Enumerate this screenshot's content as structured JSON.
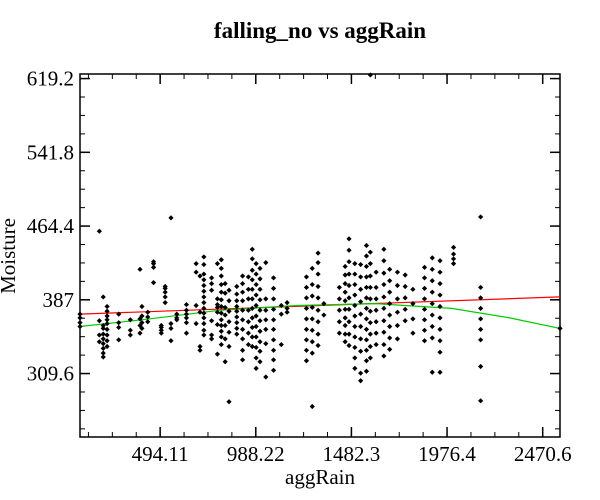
{
  "chart_data": {
    "type": "scatter",
    "title": "falling_no vs aggRain",
    "xlabel": "aggRain",
    "ylabel": "Moisture",
    "xlim": [
      80,
      2560
    ],
    "ylim": [
      243,
      624
    ],
    "x_ticks": [
      {
        "value": 494.11,
        "label": "494.11"
      },
      {
        "value": 988.22,
        "label": "988.22"
      },
      {
        "value": 1482.3,
        "label": "1482.3"
      },
      {
        "value": 1976.4,
        "label": "1976.4"
      },
      {
        "value": 2470.6,
        "label": "2470.6"
      }
    ],
    "y_ticks": [
      {
        "value": 309.6,
        "label": "309.6"
      },
      {
        "value": 387,
        "label": "387"
      },
      {
        "value": 464.4,
        "label": "464.4"
      },
      {
        "value": 541.8,
        "label": "541.8"
      },
      {
        "value": 619.2,
        "label": "619.2"
      }
    ],
    "grid": false,
    "marker_color": "#000000",
    "point_columns": [
      {
        "x": 80,
        "y": [
          372,
          368,
          363,
          359
        ]
      },
      {
        "x": 180,
        "y": [
          350,
          343,
          365,
          459
        ]
      },
      {
        "x": 200,
        "y": [
          360,
          357,
          351,
          346,
          341,
          336,
          331,
          327,
          390
        ]
      },
      {
        "x": 220,
        "y": [
          380,
          375,
          370,
          366,
          362,
          356,
          350,
          344,
          338
        ]
      },
      {
        "x": 280,
        "y": [
          372,
          363,
          358,
          345
        ]
      },
      {
        "x": 340,
        "y": [
          366,
          355,
          350
        ]
      },
      {
        "x": 390,
        "y": [
          419,
          367,
          360,
          352
        ]
      },
      {
        "x": 400,
        "y": [
          380,
          370,
          363,
          357
        ]
      },
      {
        "x": 430,
        "y": [
          374,
          369,
          364
        ]
      },
      {
        "x": 460,
        "y": [
          427,
          425,
          421,
          405
        ]
      },
      {
        "x": 500,
        "y": [
          360,
          358,
          355,
          352
        ]
      },
      {
        "x": 520,
        "y": [
          401,
          399,
          395,
          390,
          384
        ]
      },
      {
        "x": 550,
        "y": [
          473,
          362,
          357,
          344
        ]
      },
      {
        "x": 580,
        "y": [
          372,
          368,
          366
        ]
      },
      {
        "x": 630,
        "y": [
          382,
          376,
          372,
          368,
          363,
          352
        ]
      },
      {
        "x": 680,
        "y": [
          425,
          416,
          381,
          362
        ]
      },
      {
        "x": 700,
        "y": [
          412,
          374,
          338,
          334
        ]
      },
      {
        "x": 720,
        "y": [
          432,
          424,
          414,
          408,
          402,
          396,
          390,
          384,
          378,
          373,
          368,
          362,
          355,
          350
        ]
      },
      {
        "x": 760,
        "y": [
          410,
          404,
          397,
          365,
          350,
          346
        ]
      },
      {
        "x": 790,
        "y": [
          425,
          388,
          382,
          379,
          374,
          361,
          330
        ]
      },
      {
        "x": 810,
        "y": [
          429,
          420,
          412,
          403,
          395,
          387,
          380,
          373,
          366,
          360,
          354,
          348,
          340
        ]
      },
      {
        "x": 830,
        "y": [
          404,
          394,
          379,
          371,
          360,
          346,
          322
        ]
      },
      {
        "x": 850,
        "y": [
          397,
          386,
          375,
          364,
          353,
          338,
          280
        ]
      },
      {
        "x": 890,
        "y": [
          401,
          393,
          386,
          380,
          375,
          369,
          363,
          357,
          351
        ]
      },
      {
        "x": 920,
        "y": [
          412,
          404,
          395,
          386,
          376,
          366,
          356,
          346,
          334,
          324
        ]
      },
      {
        "x": 950,
        "y": [
          411,
          398,
          388,
          376,
          364,
          352,
          340
        ]
      },
      {
        "x": 970,
        "y": [
          440,
          430,
          418,
          408,
          398,
          388,
          378,
          368,
          358,
          348,
          338
        ]
      },
      {
        "x": 990,
        "y": [
          425,
          414,
          403,
          392,
          381,
          370,
          359,
          348,
          337,
          326,
          315
        ]
      },
      {
        "x": 1010,
        "y": [
          420,
          409,
          398,
          387,
          376,
          365,
          354,
          343,
          333,
          322
        ]
      },
      {
        "x": 1040,
        "y": [
          426,
          388,
          376,
          366,
          356,
          341,
          306
        ]
      },
      {
        "x": 1080,
        "y": [
          410,
          399,
          388,
          377,
          366,
          356,
          345,
          334,
          324,
          313
        ]
      },
      {
        "x": 1120,
        "y": [
          381,
          372,
          340
        ]
      },
      {
        "x": 1150,
        "y": [
          384,
          378,
          374
        ]
      },
      {
        "x": 1250,
        "y": [
          411,
          400,
          389,
          378,
          367,
          356,
          345,
          334,
          323
        ]
      },
      {
        "x": 1280,
        "y": [
          420,
          403,
          391,
          379,
          367,
          355,
          343,
          331,
          275
        ]
      },
      {
        "x": 1310,
        "y": [
          436,
          426,
          414,
          401,
          389,
          376,
          364,
          351,
          339
        ]
      },
      {
        "x": 1340,
        "y": [
          383,
          371
        ]
      },
      {
        "x": 1420,
        "y": [
          400,
          388,
          376,
          364,
          352
        ]
      },
      {
        "x": 1450,
        "y": [
          422,
          413,
          404,
          395,
          386,
          377,
          368,
          360,
          351,
          343
        ]
      },
      {
        "x": 1470,
        "y": [
          451,
          439,
          427,
          414,
          402,
          389,
          377,
          364,
          351,
          339
        ]
      },
      {
        "x": 1500,
        "y": [
          425,
          414,
          403,
          392,
          381,
          370,
          359,
          348,
          337,
          326,
          315
        ]
      },
      {
        "x": 1530,
        "y": [
          424,
          411,
          398,
          385,
          372,
          359,
          346,
          333,
          310,
          302
        ]
      },
      {
        "x": 1560,
        "y": [
          444,
          433,
          422,
          411,
          400,
          389,
          378,
          367,
          356,
          345,
          334,
          323,
          312
        ]
      },
      {
        "x": 1580,
        "y": [
          437,
          425,
          412,
          400,
          388,
          375,
          363,
          351,
          338,
          326
        ]
      },
      {
        "x": 1610,
        "y": [
          416,
          400,
          388,
          376,
          364,
          352,
          340
        ]
      },
      {
        "x": 1650,
        "y": [
          440,
          428,
          415,
          403,
          390,
          378,
          365,
          353,
          340,
          328
        ]
      },
      {
        "x": 1680,
        "y": [
          419,
          407,
          395,
          383,
          371,
          359,
          347,
          335
        ]
      },
      {
        "x": 1720,
        "y": [
          416,
          402,
          388,
          374,
          360,
          346
        ]
      },
      {
        "x": 1760,
        "y": [
          413,
          401,
          389,
          377,
          365
        ]
      },
      {
        "x": 1800,
        "y": [
          398,
          383,
          367,
          352
        ]
      },
      {
        "x": 1860,
        "y": [
          421,
          410,
          399,
          388,
          377,
          366,
          355,
          344
        ]
      },
      {
        "x": 1900,
        "y": [
          431,
          419,
          407,
          395,
          383,
          371,
          359,
          347,
          311
        ]
      },
      {
        "x": 1940,
        "y": [
          428,
          416,
          404,
          392,
          380,
          368,
          356,
          344,
          332,
          311
        ]
      },
      {
        "x": 2010,
        "y": [
          442,
          435,
          430,
          425
        ]
      },
      {
        "x": 2150,
        "y": [
          474,
          400,
          389,
          378,
          367,
          356,
          345,
          317,
          281
        ]
      },
      {
        "x": 2560,
        "y": [
          357
        ]
      },
      {
        "x": 1580,
        "y": [
          623
        ]
      }
    ],
    "series": [
      {
        "type": "line",
        "color": "#ff0000",
        "x": [
          80,
          2560
        ],
        "y": [
          372,
          390
        ]
      },
      {
        "type": "line",
        "color": "#00cc00",
        "x": [
          80,
          400,
          800,
          1200,
          1600,
          2000,
          2300,
          2560
        ],
        "y": [
          359,
          366,
          376,
          381,
          383,
          378,
          368,
          357
        ]
      }
    ]
  }
}
